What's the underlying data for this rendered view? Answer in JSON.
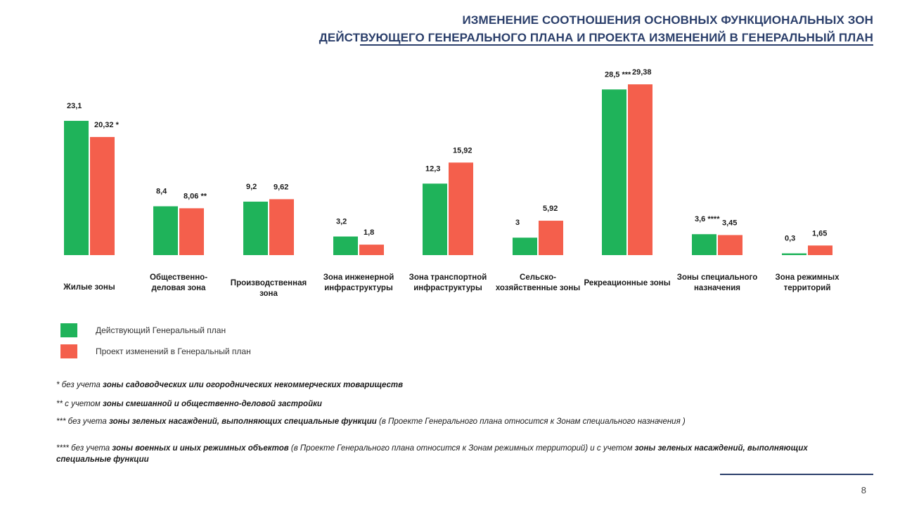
{
  "header": {
    "title_line1": "ИЗМЕНЕНИЕ СООТНОШЕНИЯ ОСНОВНЫХ ФУНКЦИОНАЛЬНЫХ ЗОН",
    "title_line2": "ДЕЙСТВУЮЩЕГО ГЕНЕРАЛЬНОГО ПЛАНА И ПРОЕКТА ИЗМЕНЕНИЙ В ГЕНЕРАЛЬНЫЙ ПЛАН"
  },
  "chart_data": {
    "type": "bar",
    "categories": [
      "Жилые зоны",
      "Общественно-деловая зона",
      "Производственная зона",
      "Зона инженерной инфраструктуры",
      "Зона транспортной инфраструктуры",
      "Сельско-хозяйственные зоны",
      "Рекреационные зоны",
      "Зоны специального назначения",
      "Зона режимных территорий"
    ],
    "series": [
      {
        "name": "Действующий Генеральный план",
        "color": "#1fb35a",
        "values": [
          23.1,
          8.4,
          9.2,
          3.2,
          12.3,
          3,
          28.5,
          3.6,
          0.3
        ],
        "labels": [
          "23,1",
          "8,4",
          "9,2",
          "3,2",
          "12,3",
          "3",
          "28,5 ***",
          "3,6 ****",
          "0,3"
        ]
      },
      {
        "name": "Проект изменений в Генеральный план",
        "color": "#f45f4c",
        "values": [
          20.32,
          8.06,
          9.62,
          1.8,
          15.92,
          5.92,
          29.38,
          3.45,
          1.65
        ],
        "labels": [
          "20,32 *",
          "8,06 **",
          "9,62",
          "1,8",
          "15,92",
          "5,92",
          "29,38",
          "3,45",
          "1,65"
        ]
      }
    ],
    "title": "",
    "xlabel": "",
    "ylabel": "",
    "ylim": [
      0,
      30
    ],
    "grid": false,
    "legend_position": "bottom-left"
  },
  "notes": {
    "n1": {
      "mark": "*",
      "a": "без учета",
      "b": "зоны",
      "c": "садоводческих или огороднических некоммерческих товариществ"
    },
    "n2": {
      "mark": "**",
      "a": "с учетом",
      "b": "зоны смешанной и общественно-деловой застройки"
    },
    "n3": {
      "mark": "***",
      "a": "без учета",
      "b": "зоны зеленых насаждений, выполняющих специальные функции",
      "c": "(в Проекте Генерального плана относится к Зонам специального назначения )"
    },
    "n4": {
      "mark": "****",
      "a": "без учета",
      "b": "зоны военных и иных режимных объектов",
      "c": "(в Проекте Генерального плана относится к Зонам режимных территорий) и с учетом",
      "d": "зоны зеленых насаждений, выполняющих специальные функции"
    }
  },
  "footer": {
    "page_number": "8"
  }
}
